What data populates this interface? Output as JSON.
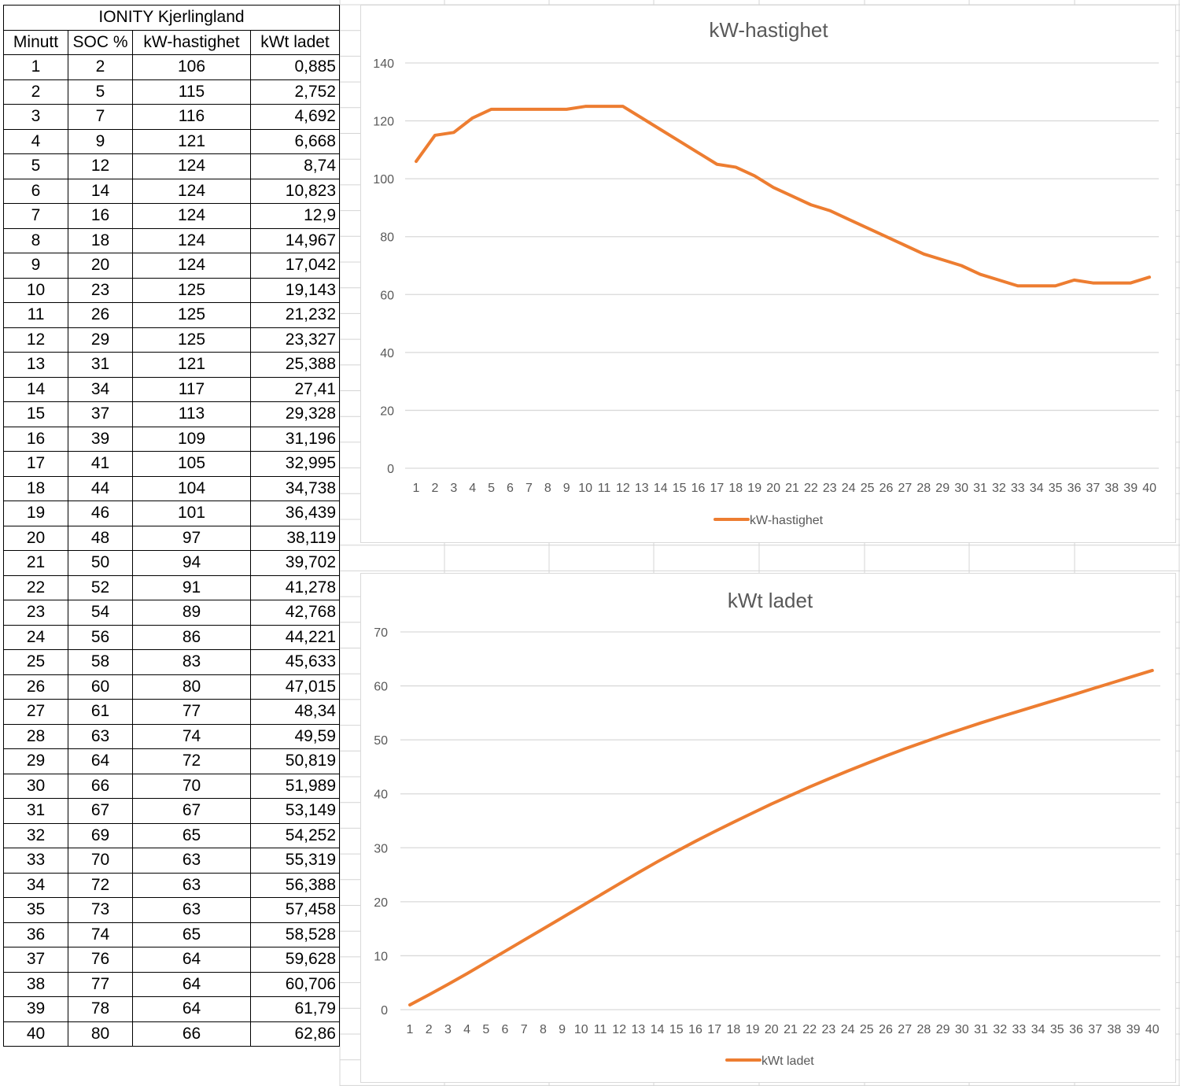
{
  "table": {
    "title": "IONITY Kjerlingland",
    "headers": [
      "Minutt",
      "SOC %",
      "kW-hastighet",
      "kWt ladet"
    ],
    "rows": [
      [
        "1",
        "2",
        "106",
        "0,885"
      ],
      [
        "2",
        "5",
        "115",
        "2,752"
      ],
      [
        "3",
        "7",
        "116",
        "4,692"
      ],
      [
        "4",
        "9",
        "121",
        "6,668"
      ],
      [
        "5",
        "12",
        "124",
        "8,74"
      ],
      [
        "6",
        "14",
        "124",
        "10,823"
      ],
      [
        "7",
        "16",
        "124",
        "12,9"
      ],
      [
        "8",
        "18",
        "124",
        "14,967"
      ],
      [
        "9",
        "20",
        "124",
        "17,042"
      ],
      [
        "10",
        "23",
        "125",
        "19,143"
      ],
      [
        "11",
        "26",
        "125",
        "21,232"
      ],
      [
        "12",
        "29",
        "125",
        "23,327"
      ],
      [
        "13",
        "31",
        "121",
        "25,388"
      ],
      [
        "14",
        "34",
        "117",
        "27,41"
      ],
      [
        "15",
        "37",
        "113",
        "29,328"
      ],
      [
        "16",
        "39",
        "109",
        "31,196"
      ],
      [
        "17",
        "41",
        "105",
        "32,995"
      ],
      [
        "18",
        "44",
        "104",
        "34,738"
      ],
      [
        "19",
        "46",
        "101",
        "36,439"
      ],
      [
        "20",
        "48",
        "97",
        "38,119"
      ],
      [
        "21",
        "50",
        "94",
        "39,702"
      ],
      [
        "22",
        "52",
        "91",
        "41,278"
      ],
      [
        "23",
        "54",
        "89",
        "42,768"
      ],
      [
        "24",
        "56",
        "86",
        "44,221"
      ],
      [
        "25",
        "58",
        "83",
        "45,633"
      ],
      [
        "26",
        "60",
        "80",
        "47,015"
      ],
      [
        "27",
        "61",
        "77",
        "48,34"
      ],
      [
        "28",
        "63",
        "74",
        "49,59"
      ],
      [
        "29",
        "64",
        "72",
        "50,819"
      ],
      [
        "30",
        "66",
        "70",
        "51,989"
      ],
      [
        "31",
        "67",
        "67",
        "53,149"
      ],
      [
        "32",
        "69",
        "65",
        "54,252"
      ],
      [
        "33",
        "70",
        "63",
        "55,319"
      ],
      [
        "34",
        "72",
        "63",
        "56,388"
      ],
      [
        "35",
        "73",
        "63",
        "57,458"
      ],
      [
        "36",
        "74",
        "65",
        "58,528"
      ],
      [
        "37",
        "76",
        "64",
        "59,628"
      ],
      [
        "38",
        "77",
        "64",
        "60,706"
      ],
      [
        "39",
        "78",
        "64",
        "61,79"
      ],
      [
        "40",
        "80",
        "66",
        "62,86"
      ]
    ]
  },
  "chart_data": [
    {
      "type": "line",
      "title": "kW-hastighet",
      "xlabel": "",
      "ylabel": "",
      "categories": [
        "1",
        "2",
        "3",
        "4",
        "5",
        "6",
        "7",
        "8",
        "9",
        "10",
        "11",
        "12",
        "13",
        "14",
        "15",
        "16",
        "17",
        "18",
        "19",
        "20",
        "21",
        "22",
        "23",
        "24",
        "25",
        "26",
        "27",
        "28",
        "29",
        "30",
        "31",
        "32",
        "33",
        "34",
        "35",
        "36",
        "37",
        "38",
        "39",
        "40"
      ],
      "ylim": [
        0,
        140
      ],
      "yticks": [
        "0",
        "20",
        "40",
        "60",
        "80",
        "100",
        "120",
        "140"
      ],
      "grid": true,
      "legend": "bottom",
      "color": "#ED7D31",
      "series": [
        {
          "name": "kW-hastighet",
          "values": [
            106,
            115,
            116,
            121,
            124,
            124,
            124,
            124,
            124,
            125,
            125,
            125,
            121,
            117,
            113,
            109,
            105,
            104,
            101,
            97,
            94,
            91,
            89,
            86,
            83,
            80,
            77,
            74,
            72,
            70,
            67,
            65,
            63,
            63,
            63,
            65,
            64,
            64,
            64,
            66
          ]
        }
      ]
    },
    {
      "type": "line",
      "title": "kWt ladet",
      "xlabel": "",
      "ylabel": "",
      "categories": [
        "1",
        "2",
        "3",
        "4",
        "5",
        "6",
        "7",
        "8",
        "9",
        "10",
        "11",
        "12",
        "13",
        "14",
        "15",
        "16",
        "17",
        "18",
        "19",
        "20",
        "21",
        "22",
        "23",
        "24",
        "25",
        "26",
        "27",
        "28",
        "29",
        "30",
        "31",
        "32",
        "33",
        "34",
        "35",
        "36",
        "37",
        "38",
        "39",
        "40"
      ],
      "ylim": [
        0,
        70
      ],
      "yticks": [
        "0",
        "10",
        "20",
        "30",
        "40",
        "50",
        "60",
        "70"
      ],
      "grid": true,
      "legend": "bottom",
      "color": "#ED7D31",
      "series": [
        {
          "name": "kWt ladet",
          "values": [
            0.885,
            2.752,
            4.692,
            6.668,
            8.74,
            10.823,
            12.9,
            14.967,
            17.042,
            19.143,
            21.232,
            23.327,
            25.388,
            27.41,
            29.328,
            31.196,
            32.995,
            34.738,
            36.439,
            38.119,
            39.702,
            41.278,
            42.768,
            44.221,
            45.633,
            47.015,
            48.34,
            49.59,
            50.819,
            51.989,
            53.149,
            54.252,
            55.319,
            56.388,
            57.458,
            58.528,
            59.628,
            60.706,
            61.79,
            62.86
          ]
        }
      ]
    }
  ]
}
